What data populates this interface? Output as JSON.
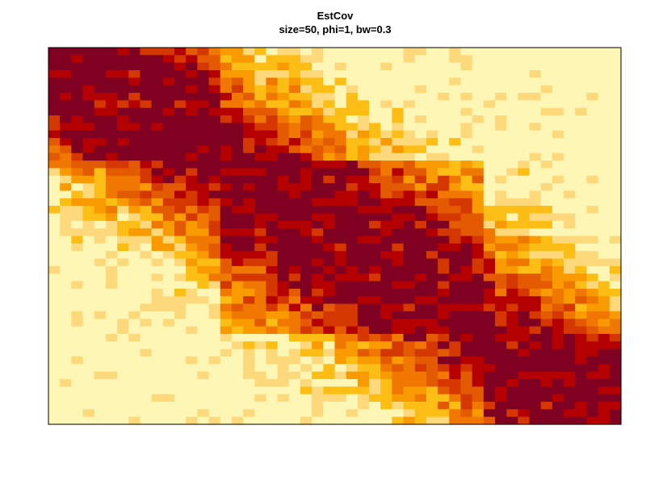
{
  "chart_data": {
    "type": "heatmap",
    "title": "EstCov",
    "subtitle": "size=50, phi=1, bw=0.3",
    "nrows": 50,
    "ncols": 50,
    "color_scale": "heat (dark red → red → orange → yellow → pale yellow)",
    "palette": [
      "#7f0020",
      "#b40000",
      "#d43800",
      "#e35a00",
      "#f07800",
      "#f89a00",
      "#fcbd14",
      "#fdd97c",
      "#fef6b4"
    ],
    "value_range": [
      0,
      1
    ],
    "axes_shown": false,
    "grid": false,
    "legend": "none",
    "structure": "block covariance: high-value (dark) blocks at top-left, center, and bottom-right; low-value (pale) regions at top-right and bottom-left corners"
  }
}
